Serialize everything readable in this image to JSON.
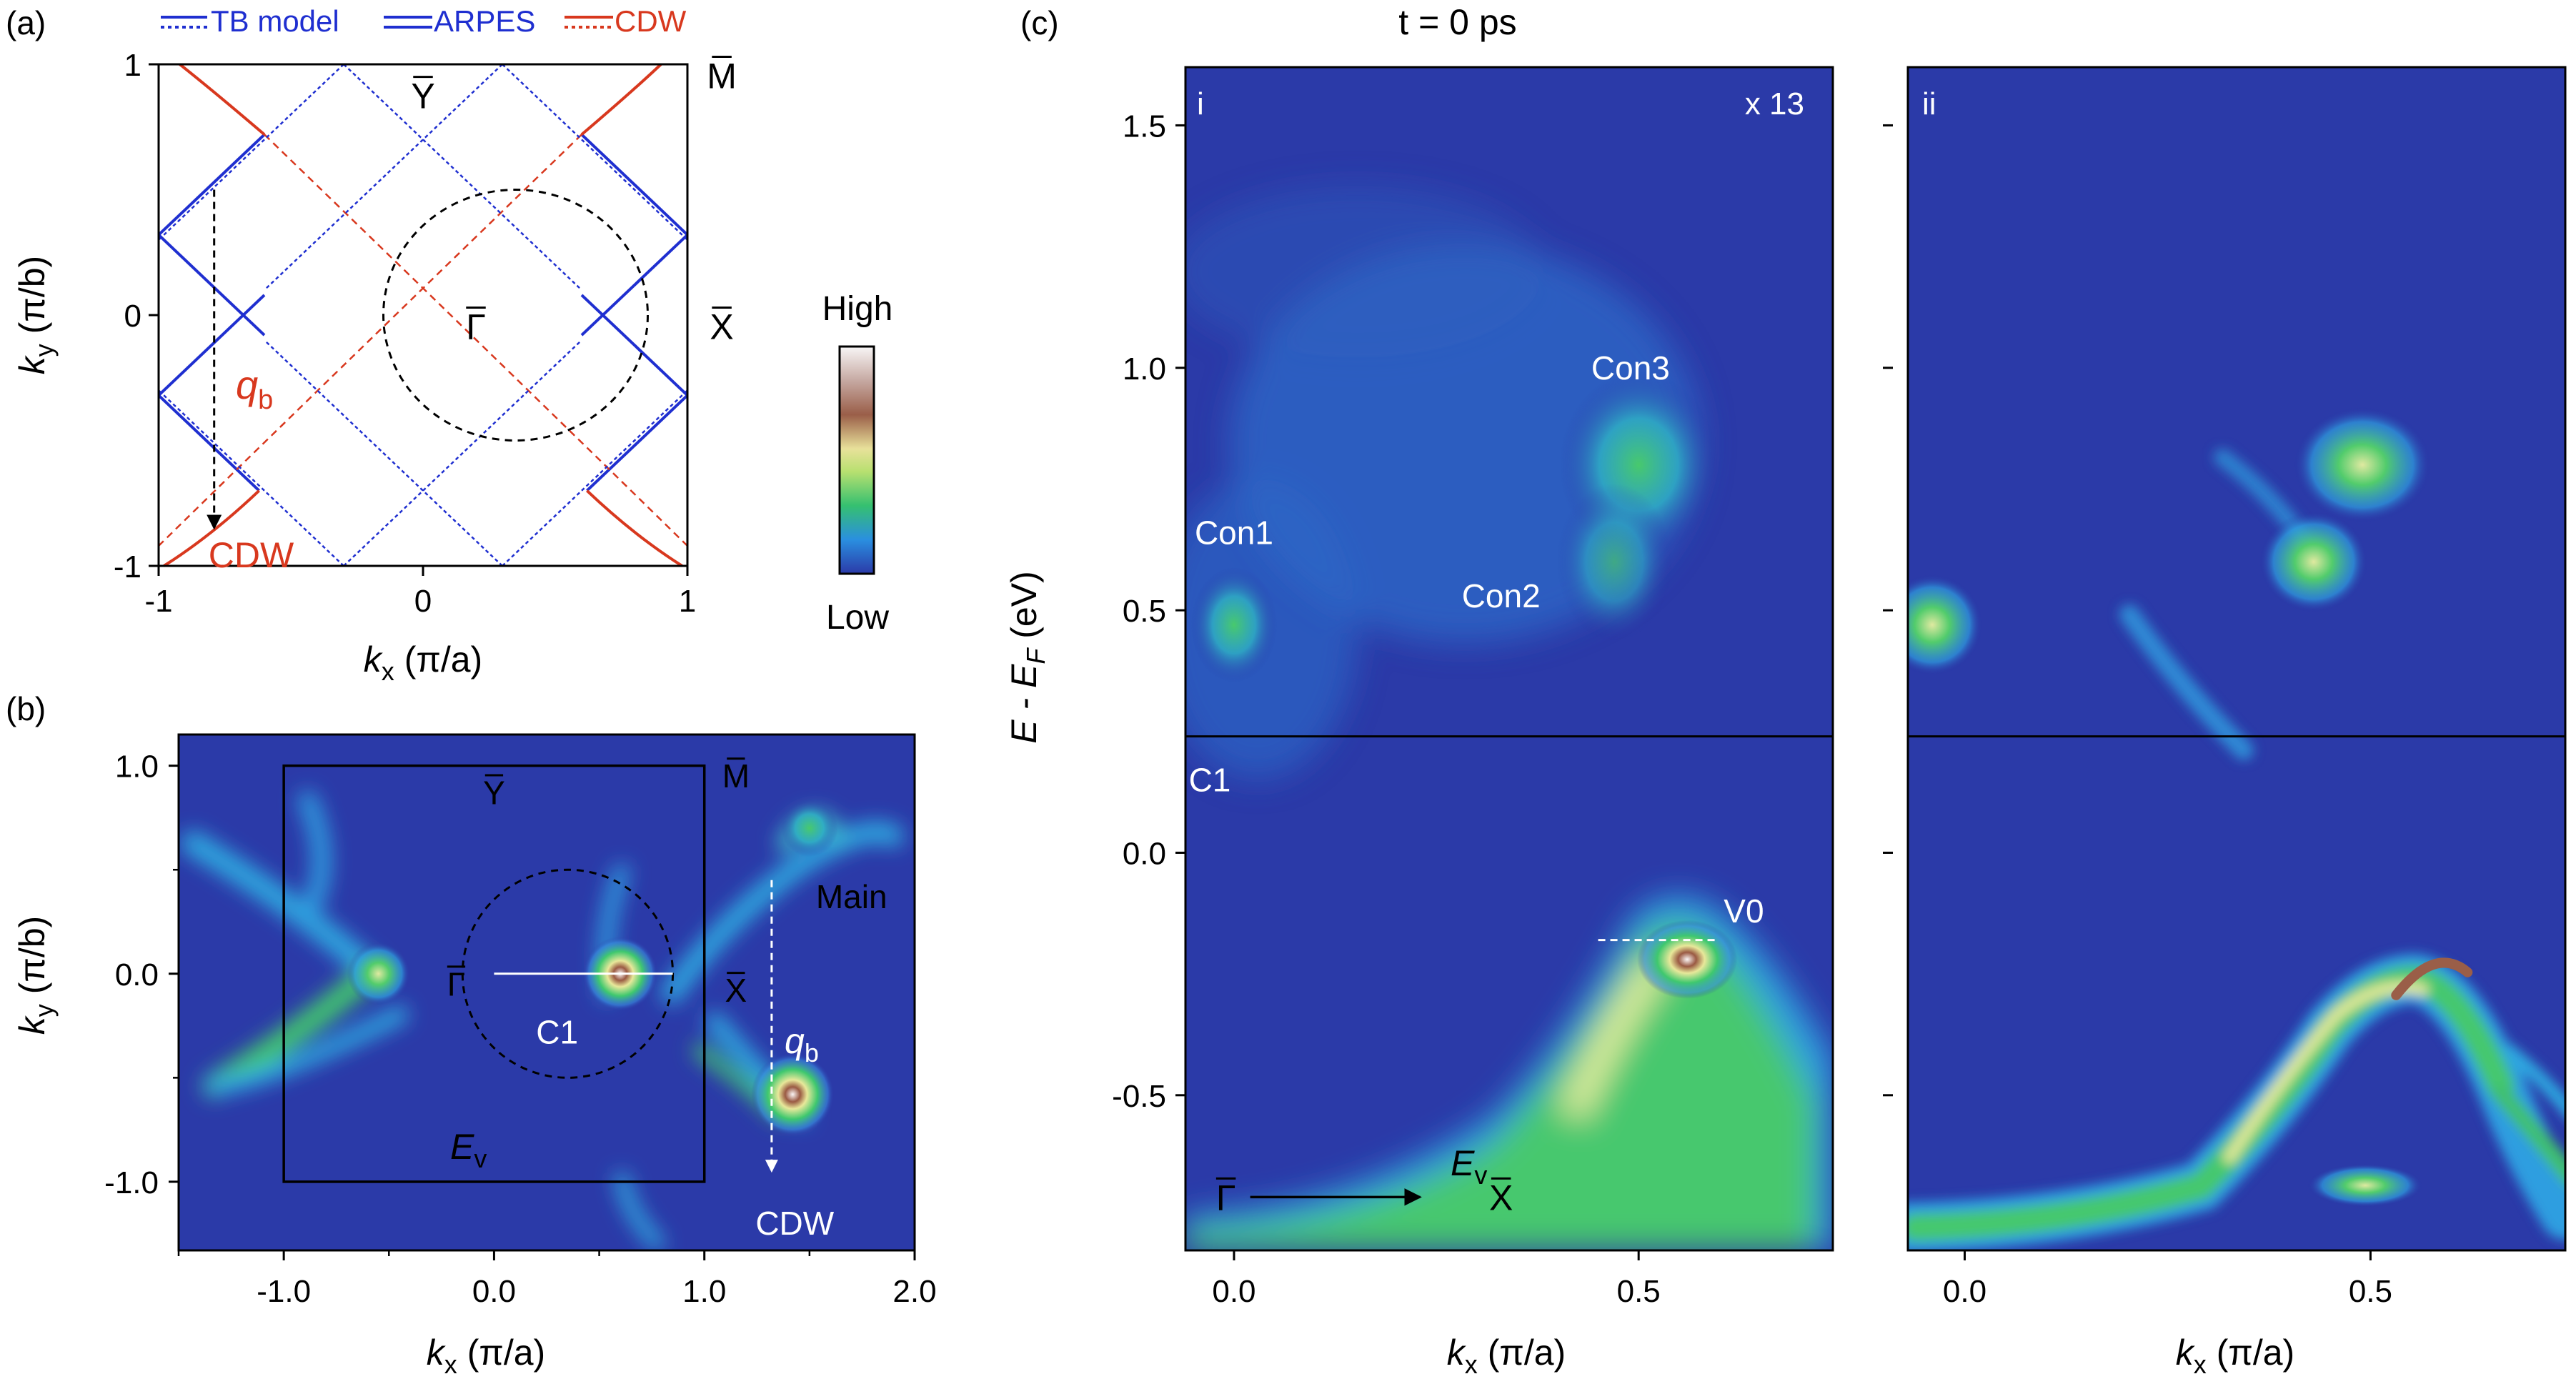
{
  "colors": {
    "tb_model": "#1f2fd0",
    "arpes": "#1f2fd0",
    "cdw": "#d8381e",
    "map_low": "#2b3aa8",
    "map_mid": "#2fc06a",
    "map_high": "#f6f2f2",
    "white": "#ffffff",
    "black": "#000000"
  },
  "panel_labels": {
    "a": "(a)",
    "b": "(b)",
    "c": "(c)"
  },
  "legend": {
    "tb": "TB model",
    "arpes": "ARPES",
    "cdw": "CDW"
  },
  "colorbar": {
    "high": "High",
    "low": "Low"
  },
  "chart_data": [
    {
      "panel": "a",
      "type": "line",
      "title": "",
      "xlabel": {
        "main": "k",
        "sub": "x",
        "unit": " (π/a)"
      },
      "ylabel": {
        "main": "k",
        "sub": "y",
        "unit": " (π/b)"
      },
      "xlim": [
        -1,
        1
      ],
      "ylim": [
        -1,
        1
      ],
      "xticks": [
        -1,
        0,
        1
      ],
      "xtick_labels": [
        "-1",
        "0",
        "1"
      ],
      "yticks": [
        -1,
        0,
        1
      ],
      "ytick_labels": [
        "-1",
        "0",
        "1"
      ],
      "series": [
        {
          "name": "ARPES",
          "style": "solid",
          "color": "blue",
          "segments": [
            [
              [
                -1,
                0.32
              ],
              [
                -0.82,
                0.5
              ],
              [
                -0.6,
                0.72
              ]
            ],
            [
              [
                -1,
                0.32
              ],
              [
                -0.8,
                0.12
              ],
              [
                -0.6,
                -0.08
              ]
            ],
            [
              [
                -1,
                -0.32
              ],
              [
                -0.8,
                -0.12
              ],
              [
                -0.6,
                0.08
              ]
            ],
            [
              [
                -1,
                -0.32
              ],
              [
                -0.82,
                -0.5
              ],
              [
                -0.62,
                -0.7
              ]
            ],
            [
              [
                1,
                0.32
              ],
              [
                0.82,
                0.5
              ],
              [
                0.6,
                0.72
              ]
            ],
            [
              [
                1,
                0.32
              ],
              [
                0.8,
                0.12
              ],
              [
                0.6,
                -0.08
              ]
            ],
            [
              [
                1,
                -0.32
              ],
              [
                0.8,
                -0.12
              ],
              [
                0.6,
                0.08
              ]
            ],
            [
              [
                1,
                -0.32
              ],
              [
                0.82,
                -0.5
              ],
              [
                0.62,
                -0.7
              ]
            ]
          ]
        },
        {
          "name": "CDW",
          "style": "solid",
          "color": "red",
          "segments": [
            [
              [
                -0.6,
                0.72
              ],
              [
                -0.8,
                0.9
              ],
              [
                -0.92,
                1.0
              ]
            ],
            [
              [
                -0.62,
                -0.7
              ],
              [
                -0.8,
                -0.88
              ],
              [
                -0.98,
                -1.0
              ]
            ],
            [
              [
                0.6,
                0.72
              ],
              [
                0.8,
                0.9
              ],
              [
                0.9,
                1.0
              ]
            ],
            [
              [
                0.62,
                -0.7
              ],
              [
                0.8,
                -0.88
              ],
              [
                0.98,
                -1.0
              ]
            ]
          ]
        },
        {
          "name": "CDW",
          "style": "dashed",
          "color": "red",
          "segments": [
            [
              [
                -0.6,
                0.72
              ],
              [
                0.4,
                -0.3
              ],
              [
                1.0,
                -0.92
              ]
            ],
            [
              [
                0.6,
                0.72
              ],
              [
                -0.4,
                -0.3
              ],
              [
                -1.0,
                -0.92
              ]
            ]
          ]
        },
        {
          "name": "TB model",
          "style": "dotted",
          "color": "blue",
          "segments": [
            [
              [
                -0.3,
                1
              ],
              [
                -1,
                0.3
              ]
            ],
            [
              [
                0.3,
                1
              ],
              [
                -0.6,
                0.1
              ]
            ],
            [
              [
                -0.3,
                1
              ],
              [
                0.6,
                0.1
              ]
            ],
            [
              [
                0.3,
                1
              ],
              [
                1,
                0.3
              ]
            ],
            [
              [
                -0.3,
                -1
              ],
              [
                -1,
                -0.3
              ]
            ],
            [
              [
                0.3,
                -1
              ],
              [
                -0.6,
                -0.1
              ]
            ],
            [
              [
                -0.3,
                -1
              ],
              [
                0.6,
                -0.1
              ]
            ],
            [
              [
                0.3,
                -1
              ],
              [
                1,
                -0.3
              ]
            ]
          ]
        }
      ],
      "circle": {
        "center": [
          0.35,
          0
        ],
        "radius": 0.5,
        "style": "dashed"
      },
      "annotations": [
        {
          "text": "Y",
          "overbar": true,
          "x": 0,
          "y": 0.87,
          "color": "black"
        },
        {
          "text": "M",
          "overbar": true,
          "x": 1.13,
          "y": 0.95,
          "color": "black"
        },
        {
          "text": "X",
          "overbar": true,
          "x": 1.13,
          "y": -0.05,
          "color": "black"
        },
        {
          "text": "Γ",
          "overbar": true,
          "x": 0.2,
          "y": -0.05,
          "color": "black"
        },
        {
          "text": "CDW",
          "overbar": false,
          "x": -0.65,
          "y": -0.96,
          "color": "red"
        }
      ],
      "qb_label": {
        "main": "q",
        "sub": "b",
        "x": -0.72,
        "y": -0.32
      },
      "arrow": {
        "from": [
          -0.79,
          0.5
        ],
        "to": [
          -0.79,
          -0.85
        ],
        "style": "dashed"
      }
    },
    {
      "panel": "b",
      "type": "heatmap",
      "title": "",
      "xlabel": {
        "main": "k",
        "sub": "x",
        "unit": " (π/a)"
      },
      "ylabel": {
        "main": "k",
        "sub": "y",
        "unit": " (π/b)"
      },
      "xlim": [
        -1.5,
        2.0
      ],
      "ylim": [
        -1.33,
        1.15
      ],
      "xticks": [
        -1.0,
        0.0,
        1.0,
        2.0
      ],
      "xtick_labels": [
        "-1.0",
        "0.0",
        "1.0",
        "2.0"
      ],
      "yticks": [
        1.0,
        0.0,
        -1.0
      ],
      "ytick_labels": [
        "1.0",
        "0.0",
        "-1.0"
      ],
      "brillouin_zone": {
        "x": [
          -1.0,
          1.0
        ],
        "y": [
          -1.0,
          1.0
        ]
      },
      "circle": {
        "center": [
          0.35,
          0
        ],
        "radius": 0.5,
        "style": "dashed"
      },
      "cut": {
        "from": [
          0.0,
          0.0
        ],
        "to": [
          0.85,
          0.0
        ],
        "label": "C1"
      },
      "features": [
        {
          "x": -0.55,
          "y": 0.0,
          "intensity": 0.8
        },
        {
          "x": 0.6,
          "y": 0.0,
          "intensity": 1.0
        },
        {
          "x": 1.42,
          "y": -0.58,
          "intensity": 0.85
        },
        {
          "x": 1.5,
          "y": 0.7,
          "intensity": 0.5
        }
      ],
      "annotations": [
        {
          "text": "Y",
          "overbar": true,
          "x": 0.0,
          "y": 0.87
        },
        {
          "text": "M",
          "overbar": true,
          "x": 1.15,
          "y": 0.95
        },
        {
          "text": "Γ",
          "overbar": true,
          "x": -0.18,
          "y": -0.05
        },
        {
          "text": "X",
          "overbar": true,
          "x": 1.15,
          "y": -0.08
        },
        {
          "text": "Main",
          "overbar": false,
          "x": 1.7,
          "y": 0.37
        },
        {
          "text": "CDW",
          "overbar": false,
          "x": 1.43,
          "y": -1.2
        },
        {
          "text": "C1",
          "overbar": false,
          "x": 0.3,
          "y": -0.28
        }
      ],
      "qb_label": {
        "main": "q",
        "sub": "b",
        "x": 1.5,
        "y": -0.35
      },
      "ev_label": {
        "main": "E",
        "sub": "v",
        "x": -0.05,
        "y": -0.88
      },
      "arrow": {
        "from": [
          1.32,
          0.45
        ],
        "to": [
          1.32,
          -0.95
        ],
        "style": "dashed"
      }
    },
    {
      "panel": "c",
      "type": "heatmap",
      "title": "t = 0 ps",
      "xlabel": {
        "main": "k",
        "sub": "x",
        "unit": " (π/a)"
      },
      "ylabel": {
        "main": "E - E",
        "sub": "F",
        "unit": " (eV)"
      },
      "xlim": [
        -0.06,
        0.74
      ],
      "ylim": [
        -0.82,
        1.62
      ],
      "xticks": [
        0.0,
        0.5
      ],
      "xtick_labels": [
        "0.0",
        "0.5"
      ],
      "yticks": [
        1.5,
        1.0,
        0.5,
        0.0,
        -0.5
      ],
      "ytick_labels": [
        "1.5",
        "1.0",
        "0.5",
        "0.0",
        "-0.5"
      ],
      "fermi_split": 0.24,
      "subpanels": [
        {
          "id": "i",
          "scale_label": "x 13",
          "labels": [
            {
              "text": "Con1",
              "x": 0.0,
              "y": 0.66
            },
            {
              "text": "Con2",
              "x": 0.33,
              "y": 0.53
            },
            {
              "text": "Con3",
              "x": 0.49,
              "y": 1.0
            },
            {
              "text": "C1",
              "x": -0.03,
              "y": 0.15
            },
            {
              "text": "V0",
              "x": 0.63,
              "y": -0.12
            }
          ],
          "ev_label": {
            "main": "E",
            "sub": "v",
            "x": 0.42,
            "y": -0.14
          },
          "features": [
            {
              "type": "blob",
              "x": 0.0,
              "y": 0.47,
              "intensity": 0.55
            },
            {
              "type": "blob",
              "x": 0.5,
              "y": 0.8,
              "intensity": 0.6
            },
            {
              "type": "blob",
              "x": 0.47,
              "y": 0.6,
              "intensity": 0.4
            },
            {
              "type": "band",
              "peak": [
                0.56,
                -0.22
              ],
              "intensity": 1.0
            }
          ],
          "direction": {
            "from": "Γ",
            "to": "X"
          }
        },
        {
          "id": "ii",
          "features": [
            {
              "type": "blob",
              "x": -0.04,
              "y": 0.47,
              "intensity": 0.6
            },
            {
              "type": "blob",
              "x": 0.49,
              "y": 0.8,
              "intensity": 0.7
            },
            {
              "type": "blob",
              "x": 0.43,
              "y": 0.6,
              "intensity": 0.55
            },
            {
              "type": "band",
              "peak": [
                0.58,
                -0.22
              ],
              "intensity": 1.0
            }
          ]
        }
      ]
    }
  ]
}
